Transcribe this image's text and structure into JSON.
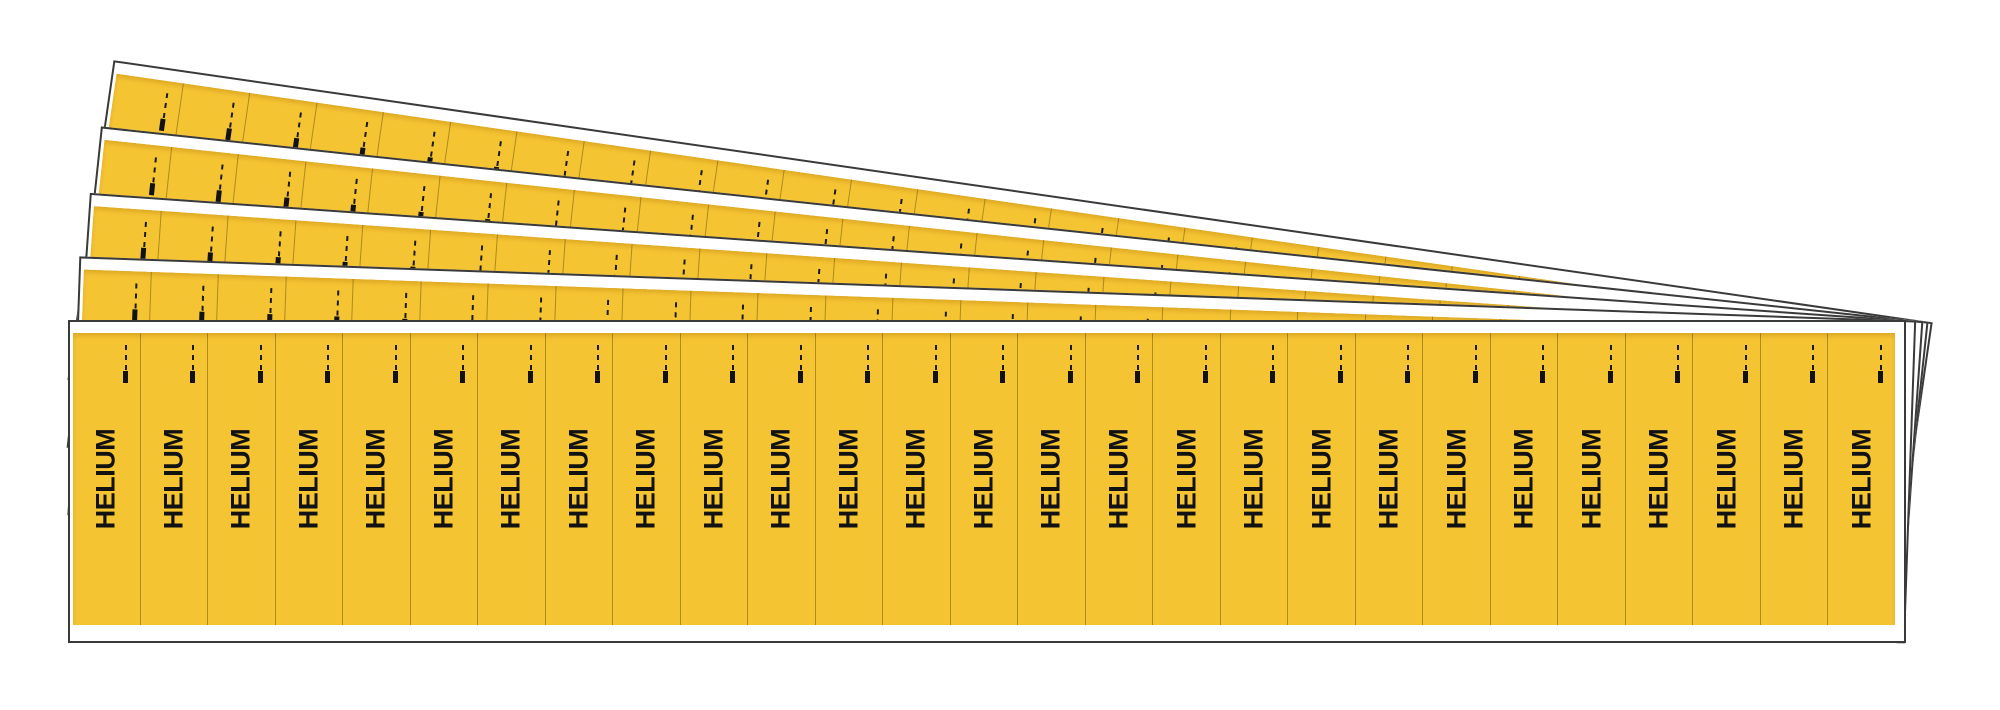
{
  "product": {
    "label_text": "HELIUM",
    "sheet_count": 5,
    "labels_per_sheet": 27,
    "colors": {
      "label_yellow": "#F5C433",
      "marker_text": "#121212",
      "sheet_white": "#FFFFFF",
      "sheet_edge": "#3A3A3A",
      "label_divider": "#684F0E"
    }
  }
}
